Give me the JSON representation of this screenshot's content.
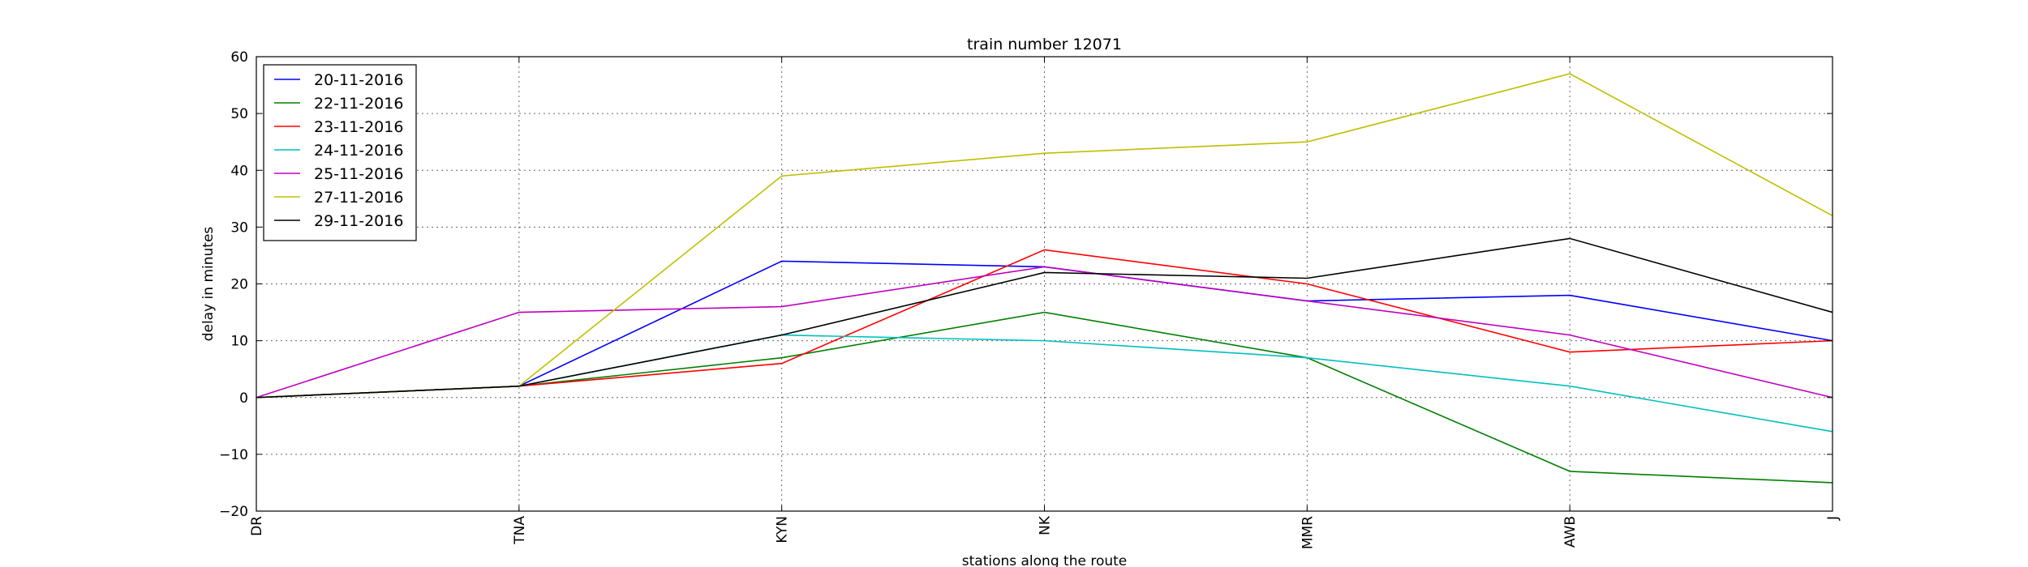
{
  "chart_data": {
    "type": "line",
    "title": "train number 12071",
    "xlabel": "stations along the route",
    "ylabel": "delay in minutes",
    "categories": [
      "DR",
      "TNA",
      "KYN",
      "NK",
      "MMR",
      "AWB",
      "J"
    ],
    "ylim": [
      -20,
      60
    ],
    "yticks": [
      -20,
      -10,
      0,
      10,
      20,
      30,
      40,
      50,
      60
    ],
    "ytick_labels": [
      "−20",
      "−10",
      "0",
      "10",
      "20",
      "30",
      "40",
      "50",
      "60"
    ],
    "grid": true,
    "legend_position": "top-left",
    "series": [
      {
        "name": "20-11-2016",
        "color": "#0000ff",
        "values": [
          0,
          2,
          24,
          23,
          17,
          18,
          10
        ]
      },
      {
        "name": "22-11-2016",
        "color": "#008000",
        "values": [
          0,
          2,
          7,
          15,
          7,
          -13,
          -15
        ]
      },
      {
        "name": "23-11-2016",
        "color": "#ff0000",
        "values": [
          0,
          2,
          6,
          26,
          20,
          8,
          10
        ]
      },
      {
        "name": "24-11-2016",
        "color": "#00bfbf",
        "values": [
          0,
          2,
          11,
          10,
          7,
          2,
          -6
        ]
      },
      {
        "name": "25-11-2016",
        "color": "#bf00bf",
        "values": [
          0,
          15,
          16,
          23,
          17,
          11,
          0
        ]
      },
      {
        "name": "27-11-2016",
        "color": "#bfbf00",
        "values": [
          0,
          2,
          39,
          43,
          45,
          57,
          32
        ]
      },
      {
        "name": "29-11-2016",
        "color": "#000000",
        "values": [
          0,
          2,
          11,
          22,
          21,
          28,
          15
        ]
      }
    ]
  }
}
